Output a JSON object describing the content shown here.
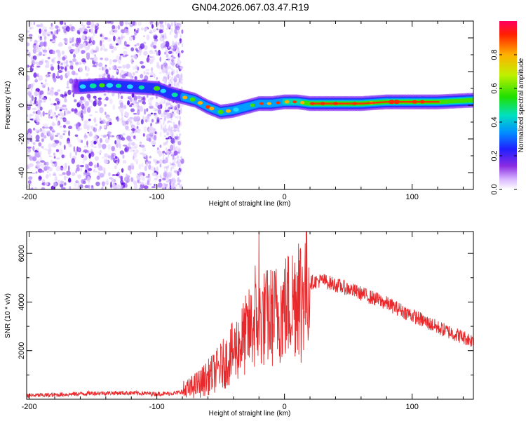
{
  "title": "GN04.2026.067.03.47.R19",
  "chart_data": [
    {
      "type": "heatmap",
      "name": "spectrogram",
      "xlabel": "Height of straight line (km)",
      "ylabel": "Frequency (Hz)",
      "xlim": [
        -202,
        148
      ],
      "ylim": [
        -50,
        50
      ],
      "xticks": [
        -200,
        -100,
        0,
        100
      ],
      "yticks": [
        -40,
        -20,
        0,
        20,
        40
      ],
      "noise_region_x": [
        -202,
        -80
      ],
      "ridge": {
        "description": "dominant frequency track",
        "x": [
          -160,
          -140,
          -120,
          -100,
          -90,
          -80,
          -70,
          -60,
          -50,
          -40,
          -30,
          -20,
          -10,
          0,
          10,
          20,
          40,
          60,
          80,
          100,
          120,
          148
        ],
        "y": [
          11,
          12,
          11,
          10,
          7,
          5,
          3,
          -1,
          -4,
          -3,
          -1,
          1,
          1,
          2,
          2,
          1,
          1,
          1,
          2,
          2,
          2,
          3
        ]
      },
      "colorbar": {
        "label": "Normalized spectral amplitude",
        "range": [
          0,
          1
        ],
        "ticks": [
          "0.0",
          "0.2",
          "0.4",
          "0.6",
          "0.8"
        ],
        "tick_values": [
          0.0,
          0.2,
          0.4,
          0.6,
          0.8
        ]
      }
    },
    {
      "type": "line",
      "name": "snr",
      "xlabel": "Height of straight line (km)",
      "ylabel": "SNR (10 * v/v)",
      "xlim": [
        -202,
        148
      ],
      "ylim": [
        0,
        6900
      ],
      "xticks": [
        -200,
        -100,
        0,
        100
      ],
      "yticks": [
        2000,
        4000,
        6000
      ],
      "color": "#e8282a",
      "series_envelope": {
        "x": [
          -202,
          -180,
          -150,
          -120,
          -100,
          -85,
          -75,
          -65,
          -55,
          -45,
          -35,
          -25,
          -18,
          -10,
          0,
          10,
          20,
          30,
          40,
          50,
          60,
          70,
          80,
          90,
          100,
          110,
          120,
          130,
          140,
          148
        ],
        "y": [
          150,
          180,
          250,
          260,
          220,
          250,
          400,
          700,
          1100,
          1600,
          2300,
          3000,
          3300,
          3400,
          3700,
          4300,
          4800,
          4900,
          4700,
          4550,
          4350,
          4150,
          3950,
          3700,
          3450,
          3200,
          2950,
          2750,
          2550,
          2400
        ]
      },
      "spikes": [
        {
          "x": -20,
          "y": 6900
        },
        {
          "x": -23,
          "y": 5500
        },
        {
          "x": 11,
          "y": 6400
        },
        {
          "x": 13,
          "y": 1500
        }
      ]
    }
  ]
}
